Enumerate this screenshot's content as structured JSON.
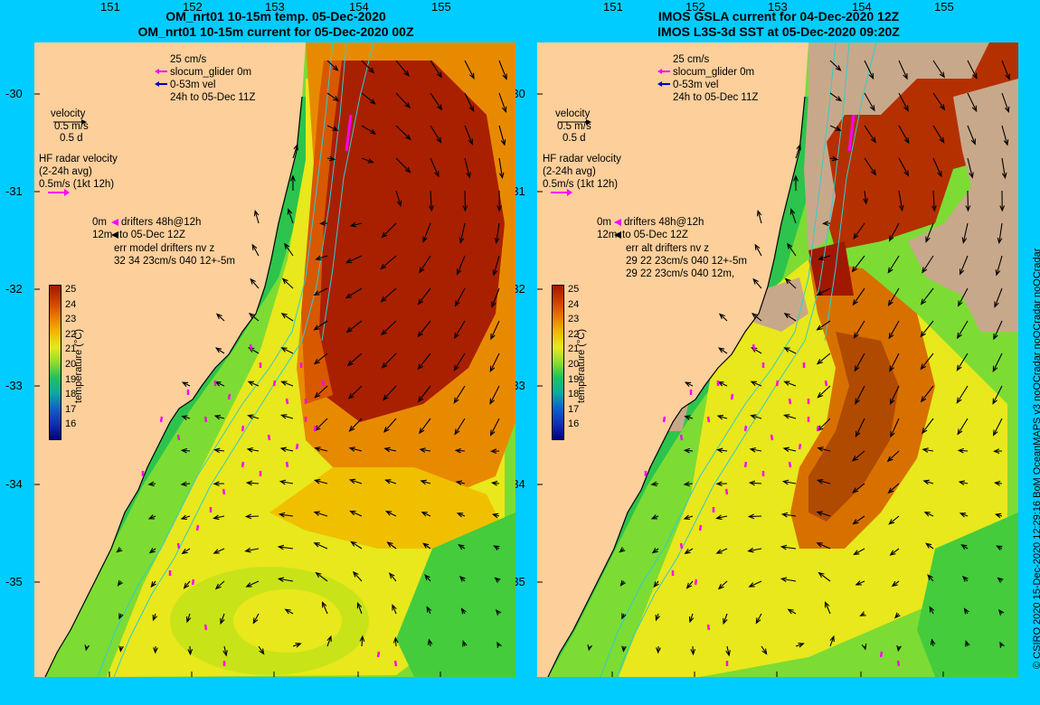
{
  "left": {
    "title_line1": "OM_nrt01 10-15m temp. 05-Dec-2020",
    "title_line2": "OM_nrt01 10-15m current for 05-Dec-2020 00Z",
    "legend_scale": "25 cm/s",
    "legend_glider": "slocum_glider 0m",
    "legend_vel": "0-53m vel",
    "legend_time": "24h to 05-Dec 11Z",
    "velocity_label": "velocity",
    "velocity_ms": "0.5 m/s",
    "velocity_d": "0.5 d",
    "hf_line1": "HF radar velocity",
    "hf_line2": "(2-24h avg)",
    "hf_line3": "0.5m/s (1kt 12h)",
    "drift_0m": "0m",
    "drift_label": "drifters 48h@12h",
    "drift_12m": "12m",
    "drift_to": "to 05-Dec 12Z",
    "err_line1": "err model drifters nv z",
    "err_line2": "32 34 23cm/s 040 12+-5m",
    "err_line3": ""
  },
  "right": {
    "title_line1": "IMOS GSLA current for 04-Dec-2020 12Z",
    "title_line2": "IMOS L3S-3d SST at 05-Dec-2020 09:20Z",
    "legend_scale": "25 cm/s",
    "legend_glider": "slocum_glider 0m",
    "legend_vel": "0-53m vel",
    "legend_time": "24h to 05-Dec 11Z",
    "velocity_label": "velocity",
    "velocity_ms": "0.5 m/s",
    "velocity_d": "0.5 d",
    "hf_line1": "HF radar velocity",
    "hf_line2": "(2-24h avg)",
    "hf_line3": "0.5m/s (1kt 12h)",
    "drift_0m": "0m",
    "drift_label": "drifters 48h@12h",
    "drift_12m": "12m",
    "drift_to": "to 05-Dec 12Z",
    "err_line1": "err alt drifters nv z",
    "err_line2": "29 22 23cm/s 040 12+-5m",
    "err_line3": "29 22 23cm/s 040 12m,"
  },
  "colorbar": {
    "ticks": [
      "25",
      "24",
      "23",
      "22",
      "21",
      "20",
      "19",
      "18",
      "17",
      "16"
    ],
    "label": "temperature (°C)"
  },
  "y_ticks": [
    "-30",
    "-31",
    "-32",
    "-33",
    "-34",
    "-35"
  ],
  "x_ticks": [
    "151",
    "152",
    "153",
    "154",
    "155"
  ],
  "credit": "© CSIRO 2020   15-Dec-2020 12:29:16 BoM OceanMAPS v3 noQCradar noQCradar noQCradar",
  "colors": {
    "land": "#fccf9b",
    "background": "#00ccff",
    "cloud": "#c8a88a",
    "contour": "#33cccc",
    "drifter": "#ff00ff"
  }
}
